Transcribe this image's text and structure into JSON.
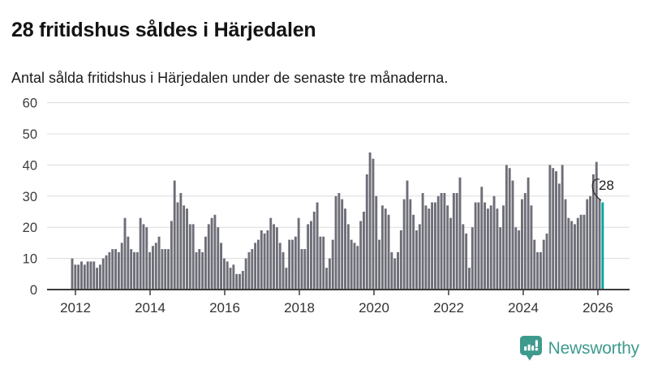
{
  "header": {
    "title": "28 fritidshus såldes i Härjedalen",
    "subtitle": "Antal sålda fritidshus i Härjedalen under de senaste tre månaderna."
  },
  "brand": {
    "name": "Newsworthy",
    "color": "#3f9a8e"
  },
  "chart_data": {
    "type": "bar",
    "title": "28 fritidshus såldes i Härjedalen",
    "subtitle": "Antal sålda fritidshus i Härjedalen under de senaste tre månaderna.",
    "period": "monthly rolling three-month totals, 2012 to early 2026",
    "grid": true,
    "ylim": [
      0,
      60
    ],
    "y_ticks": [
      0,
      10,
      20,
      30,
      40,
      50,
      60
    ],
    "x_tick_labels": [
      "2012",
      "2014",
      "2016",
      "2018",
      "2020",
      "2022",
      "2024",
      "2026"
    ],
    "bar_color": "#6e6e78",
    "axis_color": "#3c3c3c",
    "gridline_color": "#dcdcdc",
    "values": [
      10,
      8,
      8,
      9,
      8,
      9,
      9,
      9,
      7,
      8,
      10,
      11,
      12,
      13,
      13,
      12,
      15,
      23,
      17,
      13,
      12,
      12,
      23,
      21,
      20,
      12,
      14,
      15,
      17,
      13,
      13,
      13,
      22,
      35,
      28,
      31,
      27,
      26,
      21,
      21,
      12,
      13,
      12,
      17,
      21,
      23,
      24,
      20,
      15,
      10,
      9,
      7,
      8,
      5,
      5,
      6,
      10,
      12,
      13,
      15,
      16,
      19,
      18,
      19,
      23,
      21,
      20,
      15,
      12,
      7,
      16,
      16,
      17,
      23,
      13,
      13,
      21,
      22,
      25,
      28,
      17,
      17,
      7,
      10,
      16,
      30,
      31,
      29,
      26,
      21,
      16,
      15,
      14,
      22,
      25,
      37,
      44,
      42,
      30,
      16,
      27,
      26,
      24,
      12,
      10,
      12,
      19,
      29,
      35,
      29,
      24,
      19,
      21,
      31,
      27,
      26,
      28,
      28,
      30,
      31,
      31,
      27,
      23,
      31,
      31,
      36,
      21,
      18,
      7,
      20,
      28,
      28,
      33,
      28,
      26,
      27,
      30,
      26,
      20,
      27,
      40,
      39,
      35,
      20,
      19,
      29,
      31,
      36,
      27,
      16,
      12,
      12,
      16,
      18,
      40,
      39,
      38,
      34,
      40,
      29,
      23,
      22,
      21,
      23,
      24,
      24,
      29,
      30,
      37,
      41,
      29,
      28
    ],
    "highlight": {
      "index": 171,
      "value": 28,
      "label": "28",
      "color": "#00a5a0"
    }
  }
}
